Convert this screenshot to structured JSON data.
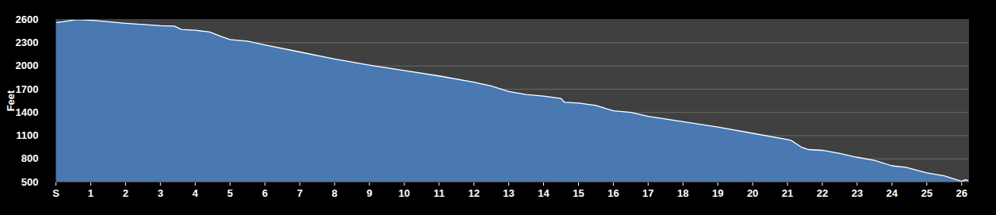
{
  "chart_data": {
    "type": "area",
    "y_label": "Feet",
    "x": [
      0,
      0.2,
      0.6,
      1,
      2,
      3,
      3.4,
      3.6,
      4,
      4.4,
      4.8,
      5,
      5.5,
      6,
      7,
      8,
      9,
      10,
      11,
      12,
      12.5,
      13,
      13.5,
      14,
      14.5,
      14.6,
      15,
      15.5,
      16,
      16.5,
      17,
      18,
      19,
      20,
      21,
      21.1,
      21.4,
      21.6,
      22,
      22.5,
      23,
      23.5,
      24,
      24.4,
      25,
      25.5,
      26,
      26.1,
      26.2
    ],
    "values": [
      2560,
      2570,
      2600,
      2590,
      2550,
      2520,
      2515,
      2470,
      2460,
      2440,
      2370,
      2340,
      2320,
      2270,
      2180,
      2090,
      2010,
      1940,
      1870,
      1790,
      1740,
      1670,
      1630,
      1610,
      1580,
      1530,
      1520,
      1490,
      1420,
      1400,
      1350,
      1280,
      1210,
      1130,
      1050,
      1040,
      950,
      920,
      910,
      870,
      820,
      780,
      710,
      690,
      620,
      580,
      510,
      530,
      520
    ],
    "color": "#4a78b0",
    "xlim": [
      0,
      26.2
    ],
    "xticks": [
      {
        "value": 0,
        "label": "S"
      },
      1,
      2,
      3,
      4,
      5,
      6,
      7,
      8,
      9,
      10,
      11,
      12,
      13,
      14,
      15,
      16,
      17,
      18,
      19,
      20,
      21,
      22,
      23,
      24,
      25,
      26
    ],
    "ylim": [
      500,
      2600
    ],
    "yticks": [
      500,
      800,
      1100,
      1400,
      1700,
      2000,
      2300,
      2600
    ],
    "grid": true
  }
}
